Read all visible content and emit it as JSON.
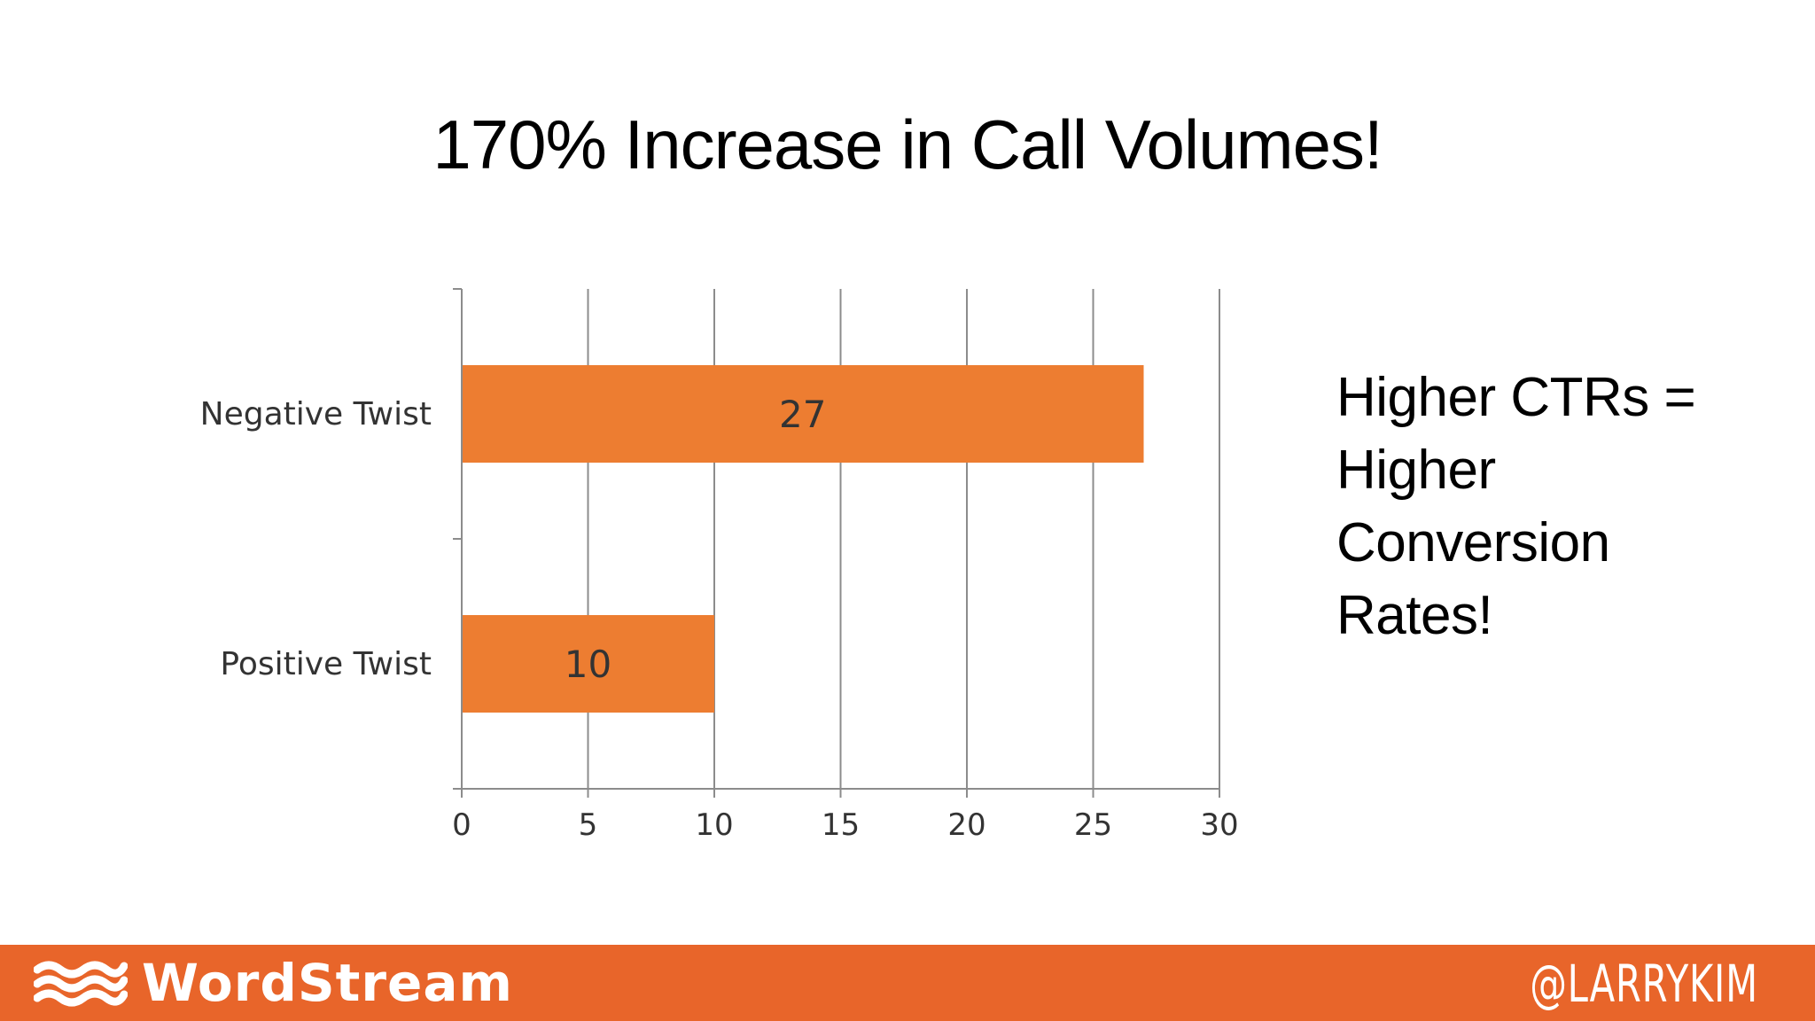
{
  "slide": {
    "title": "170% Increase in Call Volumes!",
    "side_note_lines": [
      "Higher CTRs =",
      "Higher",
      "Conversion",
      "Rates!"
    ]
  },
  "footer": {
    "brand_name": "WordStream",
    "brand_icon": "wave-icon",
    "handle": "@LARRYKIM",
    "background_color": "#e8652a"
  },
  "chart_data": {
    "type": "bar",
    "orientation": "horizontal",
    "categories": [
      "Negative Twist",
      "Positive Twist"
    ],
    "values": [
      27,
      10
    ],
    "data_labels": [
      "27",
      "10"
    ],
    "xlim": [
      0,
      30
    ],
    "x_ticks": [
      0,
      5,
      10,
      15,
      20,
      25,
      30
    ],
    "grid": true,
    "bar_color": "#ed7d31",
    "legend": "none"
  }
}
